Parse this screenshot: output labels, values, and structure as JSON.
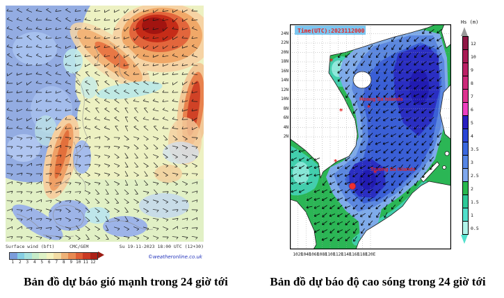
{
  "captions": {
    "left": "Bản đồ dự báo gió mạnh trong 24 giờ tới",
    "right": "Bản đồ dự báo độ cao sóng trong 24 giờ tới"
  },
  "wind_map": {
    "legend_label": "Surface wind (bft)",
    "model": "CMC/GEM",
    "timestamp": "Su 19-11-2023 18:00 UTC (12+30)",
    "credit": "©weatheronline.co.uk",
    "scale": {
      "values": [
        "1",
        "2",
        "3",
        "4",
        "5",
        "6",
        "7",
        "8",
        "9",
        "10",
        "11",
        "12"
      ],
      "colors": [
        "#7c9ddb",
        "#87cfe4",
        "#a9e2de",
        "#c6ecc9",
        "#dff2c6",
        "#f5f3c0",
        "#f3dca4",
        "#efb277",
        "#e88a52",
        "#de5e35",
        "#c93a24",
        "#ad2117"
      ],
      "arrow_color": "#9b1b12"
    }
  },
  "wave_map": {
    "time_label": "Time(UTC):2023112000",
    "time_label_bg": "#7cc6f0",
    "label_color": "#e62222",
    "colorbar": {
      "title": "Hs (m)",
      "ticks": [
        "12",
        "10",
        "9",
        "8",
        "7",
        "6",
        "5",
        "4",
        "3.5",
        "3",
        "2.5",
        "2",
        "1.5",
        "1",
        "0.5"
      ],
      "colors": [
        "#8f1745",
        "#a81c55",
        "#bb2266",
        "#cc2a7a",
        "#dd3390",
        "#ee3fc0",
        "#2a1fc0",
        "#2b46d6",
        "#3a68de",
        "#5585e5",
        "#7fa8ee",
        "#28b84e",
        "#2ec998",
        "#52e0cc",
        "#b0f5ea"
      ]
    },
    "lat_labels": [
      "24N",
      "22N",
      "20N",
      "18N",
      "16N",
      "14N",
      "12N",
      "10N",
      "8N",
      "6N",
      "4N",
      "2N"
    ],
    "lon_labels": [
      "102E",
      "104E",
      "106E",
      "108E",
      "110E",
      "112E",
      "114E",
      "116E",
      "118E",
      "120E"
    ],
    "labels": {
      "hoang_sa": "Hoang Sa Islands",
      "truong_sa": "Truong Sa Islands"
    }
  }
}
